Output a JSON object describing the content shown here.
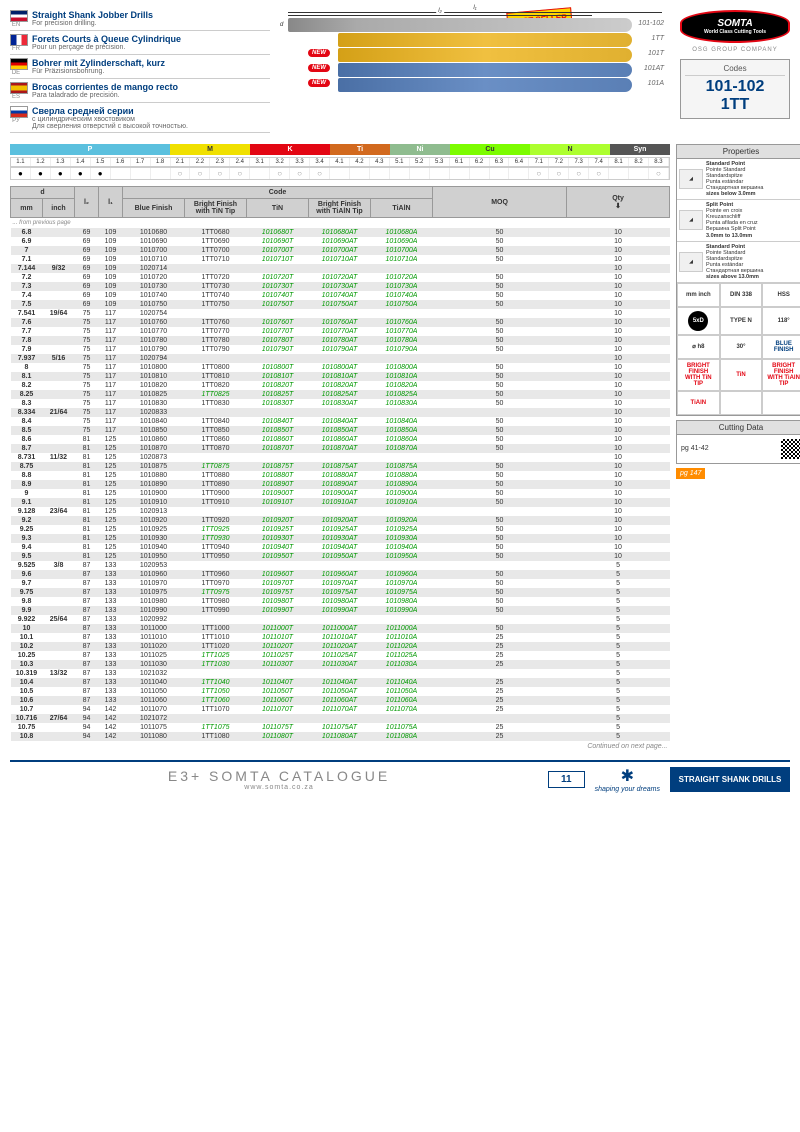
{
  "titles": [
    {
      "lang": "EN",
      "flag": "en",
      "main": "Straight Shank Jobber Drills",
      "sub": "For precision drilling."
    },
    {
      "lang": "FR",
      "flag": "fr",
      "main": "Forets Courts à Queue Cylindrique",
      "sub": "Pour un perçage de précision."
    },
    {
      "lang": "DE",
      "flag": "de",
      "main": "Bohrer mit Zylinderschaft, kurz",
      "sub": "Für Präzisionsbohrung."
    },
    {
      "lang": "ES",
      "flag": "es",
      "main": "Brocas corrientes de mango recto",
      "sub": "Para taladrado de precisión."
    },
    {
      "lang": "РУ",
      "flag": "ru",
      "main": "Сверла средней серии",
      "sub": "с цилиндрическим хвостовиком",
      "sub2": "Для сверления отверстий с высокой точностью."
    }
  ],
  "drill_labels": [
    "101-102",
    "1TT",
    "101T",
    "101AT",
    "101A"
  ],
  "best_seller": "BEST SELLER",
  "new_label": "NEW",
  "brand": "SOMTA",
  "brand_sub": "World Class Cutting Tools",
  "osg": "OSG GROUP COMPANY",
  "codes_title": "Codes",
  "codes": [
    "101-102",
    "1TT"
  ],
  "materials": [
    "P",
    "M",
    "K",
    "Ti",
    "Ni",
    "Cu",
    "N",
    "Syn"
  ],
  "mat_numbers": [
    "1.1",
    "1.2",
    "1.3",
    "1.4",
    "1.5",
    "1.6",
    "1.7",
    "1.8",
    "2.1",
    "2.2",
    "2.3",
    "2.4",
    "3.1",
    "3.2",
    "3.3",
    "3.4",
    "4.1",
    "4.2",
    "4.3",
    "5.1",
    "5.2",
    "5.3",
    "6.1",
    "6.2",
    "6.3",
    "6.4",
    "7.1",
    "7.2",
    "7.3",
    "7.4",
    "8.1",
    "8.2",
    "8.3"
  ],
  "mat_dots": [
    "●",
    "●",
    "●",
    "●",
    "●",
    "",
    "",
    "",
    "○",
    "○",
    "○",
    "○",
    "",
    "○",
    "○",
    "○",
    "",
    "",
    "",
    "",
    "",
    "",
    "",
    "",
    "",
    "",
    "○",
    "○",
    "○",
    "○",
    "",
    "",
    "○"
  ],
  "table_headers": {
    "d": "d",
    "mm": "mm",
    "inch": "inch",
    "l2": "l₂",
    "l1": "l₁",
    "code": "Code",
    "blue": "Blue Finish",
    "bright_tin": "Bright Finish with TiN Tip",
    "tin": "TiN",
    "bright_tialn": "Bright Finish with TiAlN Tip",
    "tialn": "TiAlN",
    "moq": "MOQ",
    "qty": "Qty"
  },
  "prev_page": "... from previous page",
  "next_page": "Continued on next page...",
  "rows": [
    [
      "6.8",
      "",
      "69",
      "109",
      "1010680",
      "1TT0680",
      "1010680T",
      "1010680AT",
      "1010680A",
      "50",
      "10"
    ],
    [
      "6.9",
      "",
      "69",
      "109",
      "1010690",
      "1TT0690",
      "1010690T",
      "1010690AT",
      "1010690A",
      "50",
      "10"
    ],
    [
      "7",
      "",
      "69",
      "109",
      "1010700",
      "1TT0700",
      "1010700T",
      "1010700AT",
      "1010700A",
      "50",
      "10"
    ],
    [
      "7.1",
      "",
      "69",
      "109",
      "1010710",
      "1TT0710",
      "1010710T",
      "1010710AT",
      "1010710A",
      "50",
      "10"
    ],
    [
      "7.144",
      "9/32",
      "69",
      "109",
      "1020714",
      "",
      "",
      "",
      "",
      "",
      "10"
    ],
    [
      "7.2",
      "",
      "69",
      "109",
      "1010720",
      "1TT0720",
      "1010720T",
      "1010720AT",
      "1010720A",
      "50",
      "10"
    ],
    [
      "7.3",
      "",
      "69",
      "109",
      "1010730",
      "1TT0730",
      "1010730T",
      "1010730AT",
      "1010730A",
      "50",
      "10"
    ],
    [
      "7.4",
      "",
      "69",
      "109",
      "1010740",
      "1TT0740",
      "1010740T",
      "1010740AT",
      "1010740A",
      "50",
      "10"
    ],
    [
      "7.5",
      "",
      "69",
      "109",
      "1010750",
      "1TT0750",
      "1010750T",
      "1010750AT",
      "1010750A",
      "50",
      "10"
    ],
    [
      "7.541",
      "19/64",
      "75",
      "117",
      "1020754",
      "",
      "",
      "",
      "",
      "",
      "10"
    ],
    [
      "7.6",
      "",
      "75",
      "117",
      "1010760",
      "1TT0760",
      "1010760T",
      "1010760AT",
      "1010760A",
      "50",
      "10"
    ],
    [
      "7.7",
      "",
      "75",
      "117",
      "1010770",
      "1TT0770",
      "1010770T",
      "1010770AT",
      "1010770A",
      "50",
      "10"
    ],
    [
      "7.8",
      "",
      "75",
      "117",
      "1010780",
      "1TT0780",
      "1010780T",
      "1010780AT",
      "1010780A",
      "50",
      "10"
    ],
    [
      "7.9",
      "",
      "75",
      "117",
      "1010790",
      "1TT0790",
      "1010790T",
      "1010790AT",
      "1010790A",
      "50",
      "10"
    ],
    [
      "7.937",
      "5/16",
      "75",
      "117",
      "1020794",
      "",
      "",
      "",
      "",
      "",
      "10"
    ],
    [
      "8",
      "",
      "75",
      "117",
      "1010800",
      "1TT0800",
      "1010800T",
      "1010800AT",
      "1010800A",
      "50",
      "10"
    ],
    [
      "8.1",
      "",
      "75",
      "117",
      "1010810",
      "1TT0810",
      "1010810T",
      "1010810AT",
      "1010810A",
      "50",
      "10"
    ],
    [
      "8.2",
      "",
      "75",
      "117",
      "1010820",
      "1TT0820",
      "1010820T",
      "1010820AT",
      "1010820A",
      "50",
      "10"
    ],
    [
      "8.25",
      "",
      "75",
      "117",
      "1010825",
      "1TT0825",
      "1010825T",
      "1010825AT",
      "1010825A",
      "50",
      "10"
    ],
    [
      "8.3",
      "",
      "75",
      "117",
      "1010830",
      "1TT0830",
      "1010830T",
      "1010830AT",
      "1010830A",
      "50",
      "10"
    ],
    [
      "8.334",
      "21/64",
      "75",
      "117",
      "1020833",
      "",
      "",
      "",
      "",
      "",
      "10"
    ],
    [
      "8.4",
      "",
      "75",
      "117",
      "1010840",
      "1TT0840",
      "1010840T",
      "1010840AT",
      "1010840A",
      "50",
      "10"
    ],
    [
      "8.5",
      "",
      "75",
      "117",
      "1010850",
      "1TT0850",
      "1010850T",
      "1010850AT",
      "1010850A",
      "50",
      "10"
    ],
    [
      "8.6",
      "",
      "81",
      "125",
      "1010860",
      "1TT0860",
      "1010860T",
      "1010860AT",
      "1010860A",
      "50",
      "10"
    ],
    [
      "8.7",
      "",
      "81",
      "125",
      "1010870",
      "1TT0870",
      "1010870T",
      "1010870AT",
      "1010870A",
      "50",
      "10"
    ],
    [
      "8.731",
      "11/32",
      "81",
      "125",
      "1020873",
      "",
      "",
      "",
      "",
      "",
      "10"
    ],
    [
      "8.75",
      "",
      "81",
      "125",
      "1010875",
      "1TT0875",
      "1010875T",
      "1010875AT",
      "1010875A",
      "50",
      "10"
    ],
    [
      "8.8",
      "",
      "81",
      "125",
      "1010880",
      "1TT0880",
      "1010880T",
      "1010880AT",
      "1010880A",
      "50",
      "10"
    ],
    [
      "8.9",
      "",
      "81",
      "125",
      "1010890",
      "1TT0890",
      "1010890T",
      "1010890AT",
      "1010890A",
      "50",
      "10"
    ],
    [
      "9",
      "",
      "81",
      "125",
      "1010900",
      "1TT0900",
      "1010900T",
      "1010900AT",
      "1010900A",
      "50",
      "10"
    ],
    [
      "9.1",
      "",
      "81",
      "125",
      "1010910",
      "1TT0910",
      "1010910T",
      "1010910AT",
      "1010910A",
      "50",
      "10"
    ],
    [
      "9.128",
      "23/64",
      "81",
      "125",
      "1020913",
      "",
      "",
      "",
      "",
      "",
      "10"
    ],
    [
      "9.2",
      "",
      "81",
      "125",
      "1010920",
      "1TT0920",
      "1010920T",
      "1010920AT",
      "1010920A",
      "50",
      "10"
    ],
    [
      "9.25",
      "",
      "81",
      "125",
      "1010925",
      "1TT0925",
      "1010925T",
      "1010925AT",
      "1010925A",
      "50",
      "10"
    ],
    [
      "9.3",
      "",
      "81",
      "125",
      "1010930",
      "1TT0930",
      "1010930T",
      "1010930AT",
      "1010930A",
      "50",
      "10"
    ],
    [
      "9.4",
      "",
      "81",
      "125",
      "1010940",
      "1TT0940",
      "1010940T",
      "1010940AT",
      "1010940A",
      "50",
      "10"
    ],
    [
      "9.5",
      "",
      "81",
      "125",
      "1010950",
      "1TT0950",
      "1010950T",
      "1010950AT",
      "1010950A",
      "50",
      "10"
    ],
    [
      "9.525",
      "3/8",
      "87",
      "133",
      "1020953",
      "",
      "",
      "",
      "",
      "",
      "5"
    ],
    [
      "9.6",
      "",
      "87",
      "133",
      "1010960",
      "1TT0960",
      "1010960T",
      "1010960AT",
      "1010960A",
      "50",
      "5"
    ],
    [
      "9.7",
      "",
      "87",
      "133",
      "1010970",
      "1TT0970",
      "1010970T",
      "1010970AT",
      "1010970A",
      "50",
      "5"
    ],
    [
      "9.75",
      "",
      "87",
      "133",
      "1010975",
      "1TT0975",
      "1010975T",
      "1010975AT",
      "1010975A",
      "50",
      "5"
    ],
    [
      "9.8",
      "",
      "87",
      "133",
      "1010980",
      "1TT0980",
      "1010980T",
      "1010980AT",
      "1010980A",
      "50",
      "5"
    ],
    [
      "9.9",
      "",
      "87",
      "133",
      "1010990",
      "1TT0990",
      "1010990T",
      "1010990AT",
      "1010990A",
      "50",
      "5"
    ],
    [
      "9.922",
      "25/64",
      "87",
      "133",
      "1020992",
      "",
      "",
      "",
      "",
      "",
      "5"
    ],
    [
      "10",
      "",
      "87",
      "133",
      "1011000",
      "1TT1000",
      "1011000T",
      "1011000AT",
      "1011000A",
      "50",
      "5"
    ],
    [
      "10.1",
      "",
      "87",
      "133",
      "1011010",
      "1TT1010",
      "1011010T",
      "1011010AT",
      "1011010A",
      "25",
      "5"
    ],
    [
      "10.2",
      "",
      "87",
      "133",
      "1011020",
      "1TT1020",
      "1011020T",
      "1011020AT",
      "1011020A",
      "25",
      "5"
    ],
    [
      "10.25",
      "",
      "87",
      "133",
      "1011025",
      "1TT1025",
      "1011025T",
      "1011025AT",
      "1011025A",
      "25",
      "5"
    ],
    [
      "10.3",
      "",
      "87",
      "133",
      "1011030",
      "1TT1030",
      "1011030T",
      "1011030AT",
      "1011030A",
      "25",
      "5"
    ],
    [
      "10.319",
      "13/32",
      "87",
      "133",
      "1021032",
      "",
      "",
      "",
      "",
      "",
      "5"
    ],
    [
      "10.4",
      "",
      "87",
      "133",
      "1011040",
      "1TT1040",
      "1011040T",
      "1011040AT",
      "1011040A",
      "25",
      "5"
    ],
    [
      "10.5",
      "",
      "87",
      "133",
      "1011050",
      "1TT1050",
      "1011050T",
      "1011050AT",
      "1011050A",
      "25",
      "5"
    ],
    [
      "10.6",
      "",
      "87",
      "133",
      "1011060",
      "1TT1060",
      "1011060T",
      "1011060AT",
      "1011060A",
      "25",
      "5"
    ],
    [
      "10.7",
      "",
      "94",
      "142",
      "1011070",
      "1TT1070",
      "1011070T",
      "1011070AT",
      "1011070A",
      "25",
      "5"
    ],
    [
      "10.716",
      "27/64",
      "94",
      "142",
      "1021072",
      "",
      "",
      "",
      "",
      "",
      "5"
    ],
    [
      "10.75",
      "",
      "94",
      "142",
      "1011075",
      "1TT1075",
      "1011075T",
      "1011075AT",
      "1011075A",
      "25",
      "5"
    ],
    [
      "10.8",
      "",
      "94",
      "142",
      "1011080",
      "1TT1080",
      "1011080T",
      "1011080AT",
      "1011080A",
      "25",
      "5"
    ]
  ],
  "green_rows": [
    18,
    26,
    33,
    34,
    40,
    47,
    48,
    50,
    51,
    52,
    55
  ],
  "props_title": "Properties",
  "props": [
    {
      "title": "Standard Point",
      "lines": [
        "Pointe Standard",
        "Standardspitze",
        "Punta estándar",
        "Стандартная вершина"
      ],
      "note": "sizes below 3.0mm"
    },
    {
      "title": "Split Point",
      "lines": [
        "Pointe en croix",
        "Kreuzanschliff",
        "Punta afilada en cruz",
        "Вершина Split Point"
      ],
      "note": "3.0mm to 13.0mm"
    },
    {
      "title": "Standard Point",
      "lines": [
        "Pointe Standard",
        "Standardspitze",
        "Punta estándar",
        "Стандартная вершина"
      ],
      "note": "sizes above 13.0mm"
    }
  ],
  "specs": [
    [
      "mm\ninch",
      "DIN 338",
      "HSS"
    ],
    [
      "5xD",
      "TYPE N",
      "118°"
    ],
    [
      "⌀ h8",
      "30°",
      "BLUE FINISH"
    ],
    [
      "BRIGHT FINISH WITH TiN TIP",
      "TiN",
      "BRIGHT FINISH WITH TiAlN TIP"
    ],
    [
      "TiAlN",
      "",
      ""
    ]
  ],
  "cutting_title": "Cutting Data",
  "cutting_pg": "pg 41-42",
  "pg_link": "pg 147",
  "footer": {
    "cat": "E3+ SOMTA CATALOGUE",
    "url": "www.somta.co.za",
    "page": "11",
    "osg": "shaping your dreams",
    "category": "STRAIGHT SHANK DRILLS"
  }
}
